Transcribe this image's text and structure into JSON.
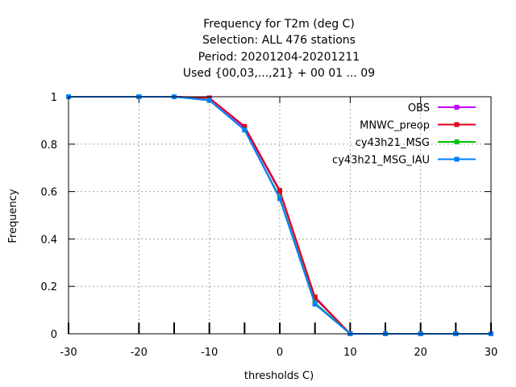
{
  "chart_data": {
    "type": "line",
    "title": [
      "Frequency  for T2m (deg C)",
      "Selection: ALL    476 stations",
      "Period: 20201204-20201211",
      "Used {00,03,...,21} + 00 01 ... 09"
    ],
    "xlabel": "thresholds C)",
    "ylabel": "Frequency",
    "xlim": [
      -30,
      30
    ],
    "ylim": [
      0,
      1
    ],
    "xticks": [
      -30,
      -20,
      -10,
      0,
      10,
      20,
      30
    ],
    "yticks": [
      0,
      0.2,
      0.4,
      0.6,
      0.8,
      1
    ],
    "grid": true,
    "legend_position": "top-right",
    "x": [
      -30,
      -20,
      -15,
      -10,
      -5,
      0,
      5,
      10,
      15,
      20,
      25,
      30
    ],
    "series": [
      {
        "name": "OBS",
        "color": "#c000ff",
        "values": [
          1,
          1,
          1,
          0.995,
          0.87,
          0.6,
          0.15,
          0,
          0,
          0,
          0,
          0
        ]
      },
      {
        "name": "MNWC_preop",
        "color": "#e0001a",
        "values": [
          1,
          1,
          1,
          0.995,
          0.875,
          0.605,
          0.155,
          0,
          0,
          0,
          0,
          0
        ]
      },
      {
        "name": "cy43h21_MSG",
        "color": "#00c000",
        "values": [
          1,
          1,
          1,
          0.985,
          0.86,
          0.575,
          0.13,
          0,
          0,
          0,
          0,
          0
        ]
      },
      {
        "name": "cy43h21_MSG_IAU",
        "color": "#0080ff",
        "values": [
          1,
          1,
          1,
          0.985,
          0.86,
          0.57,
          0.125,
          0,
          0,
          0,
          0,
          0
        ]
      }
    ]
  }
}
